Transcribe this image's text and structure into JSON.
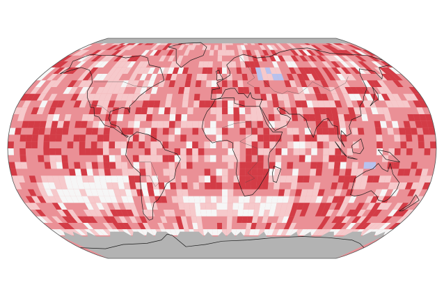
{
  "map": {
    "projection": "robinson",
    "legend": [],
    "palette": {
      "background": "#ffffff",
      "no_data": "#b3b3b3",
      "cell_levels": {
        "-1": "#b8c2ee",
        "0": "#f6f6f6",
        "1": "#f6c9cb",
        "2": "#ea9096",
        "3": "#d33c46"
      },
      "coastline": "#1a1a1a",
      "border": "#444444",
      "outline": "#555555"
    }
  }
}
